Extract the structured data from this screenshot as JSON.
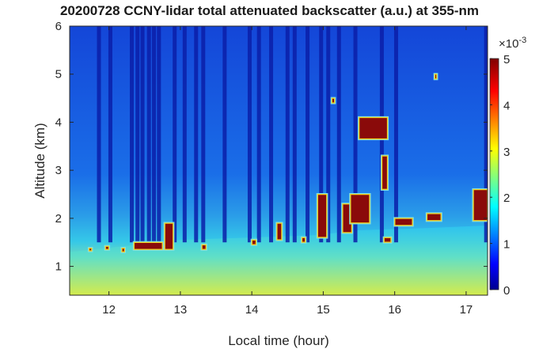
{
  "chart_data": {
    "type": "heatmap",
    "title": "20200728 CCNY-lidar total attenuated backscatter (a.u.) at 355-nm",
    "xlabel": "Local time (hour)",
    "ylabel": "Altitude (km)",
    "xlim": [
      11.45,
      17.3
    ],
    "ylim": [
      0.4,
      6
    ],
    "xticks": [
      12,
      13,
      14,
      15,
      16,
      17
    ],
    "yticks": [
      1,
      2,
      3,
      4,
      5,
      6
    ],
    "colorbar": {
      "label": "×10-3",
      "exponent_text": "-3",
      "range": [
        0,
        5
      ],
      "ticks": [
        0,
        1,
        2,
        3,
        4,
        5
      ],
      "colormap": "jet"
    },
    "boundary_layer_top_km": [
      {
        "t": 11.45,
        "h": 1.3
      },
      {
        "t": 12.4,
        "h": 1.45
      },
      {
        "t": 13.0,
        "h": 1.55
      },
      {
        "t": 14.0,
        "h": 1.6
      },
      {
        "t": 14.9,
        "h": 1.65
      },
      {
        "t": 15.5,
        "h": 1.75
      },
      {
        "t": 16.5,
        "h": 1.8
      },
      {
        "t": 17.3,
        "h": 1.85
      }
    ],
    "cloud_features": [
      {
        "t0": 11.72,
        "t1": 11.76,
        "h0": 1.32,
        "h1": 1.38
      },
      {
        "t0": 11.95,
        "t1": 12.0,
        "h0": 1.35,
        "h1": 1.42
      },
      {
        "t0": 12.18,
        "t1": 12.22,
        "h0": 1.3,
        "h1": 1.38
      },
      {
        "t0": 12.35,
        "t1": 12.75,
        "h0": 1.35,
        "h1": 1.5
      },
      {
        "t0": 12.78,
        "t1": 12.9,
        "h0": 1.35,
        "h1": 1.9
      },
      {
        "t0": 13.3,
        "t1": 13.36,
        "h0": 1.35,
        "h1": 1.45
      },
      {
        "t0": 14.0,
        "t1": 14.06,
        "h0": 1.45,
        "h1": 1.55
      },
      {
        "t0": 14.35,
        "t1": 14.42,
        "h0": 1.55,
        "h1": 1.9
      },
      {
        "t0": 14.7,
        "t1": 14.75,
        "h0": 1.5,
        "h1": 1.6
      },
      {
        "t0": 14.92,
        "t1": 15.05,
        "h0": 1.6,
        "h1": 2.5
      },
      {
        "t0": 15.27,
        "t1": 15.4,
        "h0": 1.7,
        "h1": 2.3
      },
      {
        "t0": 15.38,
        "t1": 15.65,
        "h0": 1.9,
        "h1": 2.5
      },
      {
        "t0": 15.5,
        "t1": 15.9,
        "h0": 3.65,
        "h1": 4.1
      },
      {
        "t0": 15.82,
        "t1": 15.9,
        "h0": 2.6,
        "h1": 3.3
      },
      {
        "t0": 15.85,
        "t1": 15.95,
        "h0": 1.5,
        "h1": 1.6
      },
      {
        "t0": 16.0,
        "t1": 16.25,
        "h0": 1.85,
        "h1": 2.0
      },
      {
        "t0": 16.45,
        "t1": 16.65,
        "h0": 1.95,
        "h1": 2.1
      },
      {
        "t0": 17.1,
        "t1": 17.3,
        "h0": 1.95,
        "h1": 2.6
      },
      {
        "t0": 15.12,
        "t1": 15.16,
        "h0": 4.4,
        "h1": 4.5
      },
      {
        "t0": 16.56,
        "t1": 16.59,
        "h0": 4.9,
        "h1": 5.0
      }
    ],
    "shadow_columns_hours": [
      11.86,
      12.02,
      12.32,
      12.4,
      12.47,
      12.56,
      12.63,
      12.7,
      12.92,
      13.06,
      13.22,
      13.32,
      13.62,
      13.97,
      14.1,
      14.27,
      14.5,
      14.6,
      14.78,
      14.97,
      15.07,
      15.22,
      15.45,
      15.82,
      16.02,
      17.28
    ]
  }
}
